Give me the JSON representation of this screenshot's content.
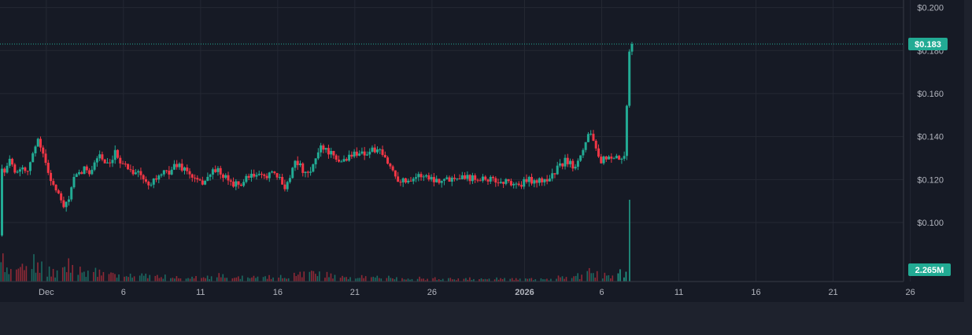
{
  "chart_data": {
    "type": "candlestick",
    "price_axis": {
      "ticks": [
        {
          "value": 0.2,
          "label": "$0.200"
        },
        {
          "value": 0.18,
          "label": "$0.180"
        },
        {
          "value": 0.16,
          "label": "$0.160"
        },
        {
          "value": 0.14,
          "label": "$0.140"
        },
        {
          "value": 0.12,
          "label": "$0.120"
        },
        {
          "value": 0.1,
          "label": "$0.100"
        }
      ],
      "range": [
        0.0755,
        0.2035
      ]
    },
    "time_axis": {
      "ticks": [
        {
          "date": "2025-12-01",
          "label": "Dec",
          "bold": false
        },
        {
          "date": "2025-12-06",
          "label": "6",
          "bold": false
        },
        {
          "date": "2025-12-11",
          "label": "11",
          "bold": false
        },
        {
          "date": "2025-12-16",
          "label": "16",
          "bold": false
        },
        {
          "date": "2025-12-21",
          "label": "21",
          "bold": false
        },
        {
          "date": "2025-12-26",
          "label": "26",
          "bold": false
        },
        {
          "date": "2026-01-01",
          "label": "2026",
          "bold": true
        },
        {
          "date": "2026-01-06",
          "label": "6",
          "bold": false
        },
        {
          "date": "2026-01-11",
          "label": "11",
          "bold": false
        },
        {
          "date": "2026-01-16",
          "label": "16",
          "bold": false
        },
        {
          "date": "2026-01-21",
          "label": "21",
          "bold": false
        },
        {
          "date": "2026-01-26",
          "label": "26",
          "bold": false
        }
      ],
      "range": [
        "2025-11-28",
        "2026-01-30"
      ]
    },
    "last_price": {
      "value": 0.183,
      "label": "$0.183"
    },
    "last_volume": {
      "label": "2.265M"
    },
    "price_path": [
      [
        "2025-11-28T00:00",
        0.094
      ],
      [
        "2025-11-28T02:00",
        0.128
      ],
      [
        "2025-11-28T10:00",
        0.123
      ],
      [
        "2025-11-28T18:00",
        0.131
      ],
      [
        "2025-11-29T02:00",
        0.122
      ],
      [
        "2025-11-29T10:00",
        0.127
      ],
      [
        "2025-11-29T18:00",
        0.124
      ],
      [
        "2025-11-30T04:00",
        0.131
      ],
      [
        "2025-11-30T12:00",
        0.14
      ],
      [
        "2025-11-30T18:00",
        0.134
      ],
      [
        "2025-12-01T00:00",
        0.127
      ],
      [
        "2025-12-01T06:00",
        0.122
      ],
      [
        "2025-12-01T14:00",
        0.116
      ],
      [
        "2025-12-02T00:00",
        0.11
      ],
      [
        "2025-12-02T06:00",
        0.106
      ],
      [
        "2025-12-02T12:00",
        0.112
      ],
      [
        "2025-12-02T20:00",
        0.12
      ],
      [
        "2025-12-03T06:00",
        0.123
      ],
      [
        "2025-12-03T14:00",
        0.125
      ],
      [
        "2025-12-03T22:00",
        0.124
      ],
      [
        "2025-12-04T06:00",
        0.129
      ],
      [
        "2025-12-04T12:00",
        0.132
      ],
      [
        "2025-12-04T20:00",
        0.127
      ],
      [
        "2025-12-05T04:00",
        0.126
      ],
      [
        "2025-12-05T12:00",
        0.132
      ],
      [
        "2025-12-05T20:00",
        0.129
      ],
      [
        "2025-12-06T06:00",
        0.126
      ],
      [
        "2025-12-06T16:00",
        0.124
      ],
      [
        "2025-12-07T02:00",
        0.123
      ],
      [
        "2025-12-07T12:00",
        0.118
      ],
      [
        "2025-12-08T00:00",
        0.12
      ],
      [
        "2025-12-08T12:00",
        0.122
      ],
      [
        "2025-12-09T00:00",
        0.124
      ],
      [
        "2025-12-09T12:00",
        0.127
      ],
      [
        "2025-12-10T00:00",
        0.125
      ],
      [
        "2025-12-10T12:00",
        0.121
      ],
      [
        "2025-12-11T00:00",
        0.118
      ],
      [
        "2025-12-11T12:00",
        0.121
      ],
      [
        "2025-12-12T00:00",
        0.125
      ],
      [
        "2025-12-12T12:00",
        0.121
      ],
      [
        "2025-12-13T00:00",
        0.119
      ],
      [
        "2025-12-13T12:00",
        0.117
      ],
      [
        "2025-12-14T00:00",
        0.12
      ],
      [
        "2025-12-14T12:00",
        0.122
      ],
      [
        "2025-12-15T00:00",
        0.121
      ],
      [
        "2025-12-15T12:00",
        0.123
      ],
      [
        "2025-12-16T00:00",
        0.121
      ],
      [
        "2025-12-16T12:00",
        0.117
      ],
      [
        "2025-12-16T20:00",
        0.121
      ],
      [
        "2025-12-17T04:00",
        0.13
      ],
      [
        "2025-12-17T12:00",
        0.126
      ],
      [
        "2025-12-17T20:00",
        0.122
      ],
      [
        "2025-12-18T04:00",
        0.123
      ],
      [
        "2025-12-18T12:00",
        0.13
      ],
      [
        "2025-12-18T20:00",
        0.136
      ],
      [
        "2025-12-19T04:00",
        0.134
      ],
      [
        "2025-12-19T12:00",
        0.132
      ],
      [
        "2025-12-19T20:00",
        0.128
      ],
      [
        "2025-12-20T06:00",
        0.129
      ],
      [
        "2025-12-20T18:00",
        0.131
      ],
      [
        "2025-12-21T06:00",
        0.133
      ],
      [
        "2025-12-21T18:00",
        0.132
      ],
      [
        "2025-12-22T06:00",
        0.134
      ],
      [
        "2025-12-22T18:00",
        0.132
      ],
      [
        "2025-12-23T06:00",
        0.127
      ],
      [
        "2025-12-23T18:00",
        0.121
      ],
      [
        "2025-12-24T06:00",
        0.119
      ],
      [
        "2025-12-24T18:00",
        0.121
      ],
      [
        "2025-12-25T12:00",
        0.122
      ],
      [
        "2025-12-26T06:00",
        0.12
      ],
      [
        "2025-12-27T00:00",
        0.12
      ],
      [
        "2025-12-27T18:00",
        0.122
      ],
      [
        "2025-12-28T12:00",
        0.121
      ],
      [
        "2025-12-29T06:00",
        0.121
      ],
      [
        "2025-12-29T18:00",
        0.12
      ],
      [
        "2025-12-30T06:00",
        0.119
      ],
      [
        "2025-12-31T00:00",
        0.119
      ],
      [
        "2025-12-31T18:00",
        0.117
      ],
      [
        "2026-01-01T06:00",
        0.12
      ],
      [
        "2026-01-02T00:00",
        0.119
      ],
      [
        "2026-01-02T18:00",
        0.121
      ],
      [
        "2026-01-03T06:00",
        0.126
      ],
      [
        "2026-01-03T18:00",
        0.129
      ],
      [
        "2026-01-04T06:00",
        0.126
      ],
      [
        "2026-01-04T14:00",
        0.131
      ],
      [
        "2026-01-04T22:00",
        0.136
      ],
      [
        "2026-01-05T06:00",
        0.143
      ],
      [
        "2026-01-05T12:00",
        0.139
      ],
      [
        "2026-01-05T18:00",
        0.13
      ],
      [
        "2026-01-06T00:00",
        0.127
      ],
      [
        "2026-01-06T08:00",
        0.131
      ],
      [
        "2026-01-06T16:00",
        0.128
      ],
      [
        "2026-01-07T00:00",
        0.13
      ],
      [
        "2026-01-07T08:00",
        0.129
      ],
      [
        "2026-01-07T14:00",
        0.13
      ],
      [
        "2026-01-07T18:00",
        0.176
      ],
      [
        "2026-01-07T22:00",
        0.183
      ]
    ],
    "volume_bars": [
      [
        "2025-11-28",
        0.6
      ],
      [
        "2025-11-29",
        0.5
      ],
      [
        "2025-11-30",
        0.55
      ],
      [
        "2025-12-01",
        0.3
      ],
      [
        "2025-12-02",
        0.55
      ],
      [
        "2025-12-03",
        0.3
      ],
      [
        "2025-12-04",
        0.35
      ],
      [
        "2025-12-05",
        0.3
      ],
      [
        "2025-12-06",
        0.2
      ],
      [
        "2025-12-07",
        0.2
      ],
      [
        "2025-12-08",
        0.2
      ],
      [
        "2025-12-09",
        0.15
      ],
      [
        "2025-12-10",
        0.15
      ],
      [
        "2025-12-11",
        0.15
      ],
      [
        "2025-12-12",
        0.2
      ],
      [
        "2025-12-13",
        0.15
      ],
      [
        "2025-12-14",
        0.15
      ],
      [
        "2025-12-15",
        0.15
      ],
      [
        "2025-12-16",
        0.15
      ],
      [
        "2025-12-17",
        0.25
      ],
      [
        "2025-12-18",
        0.35
      ],
      [
        "2025-12-19",
        0.2
      ],
      [
        "2025-12-20",
        0.15
      ],
      [
        "2025-12-21",
        0.15
      ],
      [
        "2025-12-22",
        0.15
      ],
      [
        "2025-12-23",
        0.15
      ],
      [
        "2025-12-24",
        0.1
      ],
      [
        "2025-12-25",
        0.1
      ],
      [
        "2025-12-26",
        0.1
      ],
      [
        "2025-12-27",
        0.1
      ],
      [
        "2025-12-28",
        0.1
      ],
      [
        "2025-12-29",
        0.1
      ],
      [
        "2025-12-30",
        0.1
      ],
      [
        "2025-12-31",
        0.1
      ],
      [
        "2026-01-01",
        0.1
      ],
      [
        "2026-01-02",
        0.1
      ],
      [
        "2026-01-03",
        0.15
      ],
      [
        "2026-01-04",
        0.2
      ],
      [
        "2026-01-05",
        0.3
      ],
      [
        "2026-01-06",
        0.2
      ],
      [
        "2026-01-07",
        2.265
      ]
    ],
    "volume_peak_day": "2026-01-07"
  },
  "colors": {
    "background": "#161a25",
    "frame": "#1e222d",
    "grid": "#242833",
    "axis_border": "#363a45",
    "axis_text": "#b2b5be",
    "up": "#22ab94",
    "down": "#f23645",
    "label_bg": "#22ab94",
    "label_text": "#ffffff"
  }
}
